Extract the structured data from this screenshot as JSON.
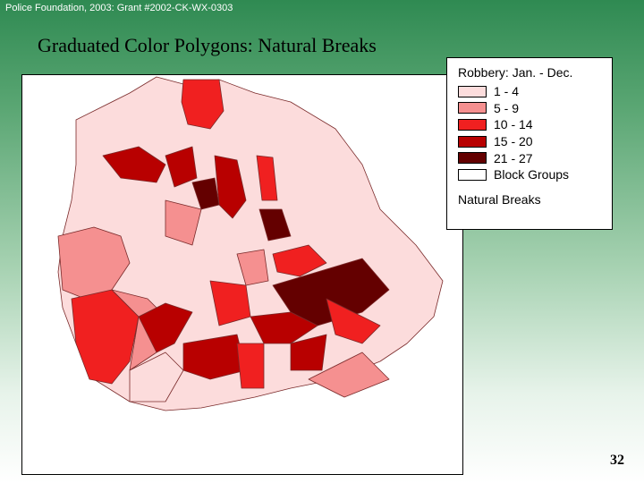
{
  "header": {
    "credit": "Police Foundation, 2003: Grant #2002-CK-WX-0303",
    "title": "Graduated Color Polygons: Natural Breaks"
  },
  "legend": {
    "title": "Robbery: Jan. - Dec.",
    "method": "Natural Breaks",
    "items": [
      {
        "label": "1 - 4",
        "color": "#fcdcdc"
      },
      {
        "label": "5 - 9",
        "color": "#f59090"
      },
      {
        "label": "10 - 14",
        "color": "#f02020"
      },
      {
        "label": "15 - 20",
        "color": "#b80000"
      },
      {
        "label": "21 - 27",
        "color": "#640000"
      },
      {
        "label": "Block Groups",
        "color": "#ffffff"
      }
    ]
  },
  "footer": {
    "page_number": "32"
  }
}
